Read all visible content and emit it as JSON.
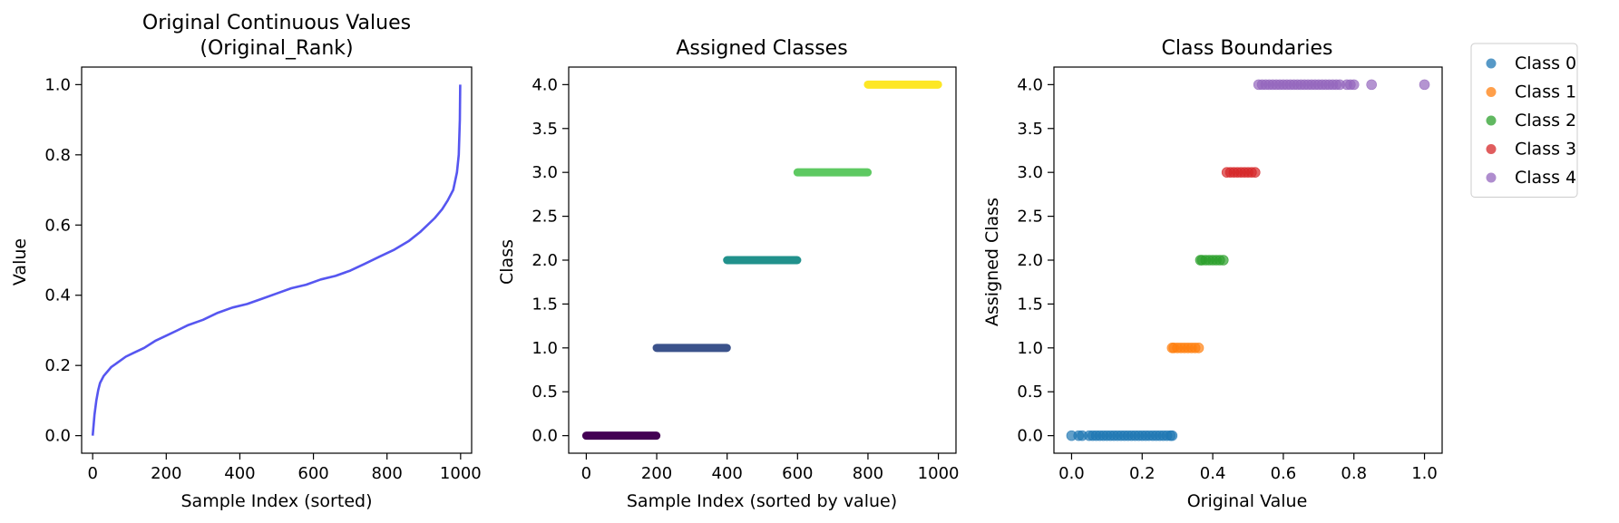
{
  "chart_data": [
    {
      "type": "line",
      "title_lines": [
        "Original Continuous Values",
        "(Original_Rank)"
      ],
      "xlabel": "Sample Index (sorted)",
      "ylabel": "Value",
      "xlim": [
        -30,
        1030
      ],
      "ylim": [
        -0.05,
        1.05
      ],
      "xticks": [
        0,
        200,
        400,
        600,
        800,
        1000
      ],
      "yticks": [
        0.0,
        0.2,
        0.4,
        0.6,
        0.8,
        1.0
      ],
      "xtick_labels": [
        "0",
        "200",
        "400",
        "600",
        "800",
        "1000"
      ],
      "ytick_labels": [
        "0.0",
        "0.2",
        "0.4",
        "0.6",
        "0.8",
        "1.0"
      ],
      "grid": false,
      "series": [
        {
          "color": "#4444ee",
          "x": [
            0,
            5,
            10,
            15,
            20,
            30,
            50,
            70,
            90,
            110,
            140,
            170,
            200,
            230,
            260,
            300,
            340,
            380,
            420,
            460,
            500,
            540,
            580,
            620,
            660,
            700,
            740,
            780,
            820,
            860,
            890,
            910,
            930,
            950,
            965,
            980,
            990,
            995,
            998,
            999
          ],
          "y": [
            0.0,
            0.06,
            0.1,
            0.13,
            0.15,
            0.17,
            0.195,
            0.21,
            0.225,
            0.235,
            0.25,
            0.27,
            0.285,
            0.3,
            0.315,
            0.33,
            0.35,
            0.365,
            0.375,
            0.39,
            0.405,
            0.42,
            0.43,
            0.445,
            0.455,
            0.47,
            0.49,
            0.51,
            0.53,
            0.555,
            0.58,
            0.6,
            0.62,
            0.645,
            0.67,
            0.7,
            0.75,
            0.8,
            0.9,
            1.0
          ]
        }
      ]
    },
    {
      "type": "scatter",
      "title_lines": [
        "Assigned Classes"
      ],
      "xlabel": "Sample Index (sorted by value)",
      "ylabel": "Class",
      "xlim": [
        -50,
        1050
      ],
      "ylim": [
        -0.2,
        4.2
      ],
      "xticks": [
        0,
        200,
        400,
        600,
        800,
        1000
      ],
      "yticks": [
        0.0,
        0.5,
        1.0,
        1.5,
        2.0,
        2.5,
        3.0,
        3.5,
        4.0
      ],
      "xtick_labels": [
        "0",
        "200",
        "400",
        "600",
        "800",
        "1000"
      ],
      "ytick_labels": [
        "0.0",
        "0.5",
        "1.0",
        "1.5",
        "2.0",
        "2.5",
        "3.0",
        "3.5",
        "4.0"
      ],
      "grid": false,
      "segments": [
        {
          "class": 0,
          "x_range": [
            0,
            199
          ],
          "color": "#440154"
        },
        {
          "class": 1,
          "x_range": [
            200,
            399
          ],
          "color": "#3b528b"
        },
        {
          "class": 2,
          "x_range": [
            400,
            599
          ],
          "color": "#21918c"
        },
        {
          "class": 3,
          "x_range": [
            600,
            799
          ],
          "color": "#5ec962"
        },
        {
          "class": 4,
          "x_range": [
            800,
            999
          ],
          "color": "#fde725"
        }
      ]
    },
    {
      "type": "scatter",
      "title_lines": [
        "Class Boundaries"
      ],
      "xlabel": "Original Value",
      "ylabel": "Assigned Class",
      "xlim": [
        -0.05,
        1.05
      ],
      "ylim": [
        -0.2,
        4.2
      ],
      "xticks": [
        0.0,
        0.2,
        0.4,
        0.6,
        0.8,
        1.0
      ],
      "yticks": [
        0.0,
        0.5,
        1.0,
        1.5,
        2.0,
        2.5,
        3.0,
        3.5,
        4.0
      ],
      "xtick_labels": [
        "0.0",
        "0.2",
        "0.4",
        "0.6",
        "0.8",
        "1.0"
      ],
      "ytick_labels": [
        "0.0",
        "0.5",
        "1.0",
        "1.5",
        "2.0",
        "2.5",
        "3.0",
        "3.5",
        "4.0"
      ],
      "grid": false,
      "legend": "outside-right-top",
      "series": [
        {
          "name": "Class 0",
          "y": 0,
          "color": "#1f77b4",
          "x": [
            0.0,
            0.02,
            0.03,
            0.05,
            0.06,
            0.07,
            0.08,
            0.09,
            0.1,
            0.11,
            0.12,
            0.13,
            0.14,
            0.15,
            0.16,
            0.17,
            0.18,
            0.19,
            0.2,
            0.21,
            0.22,
            0.23,
            0.24,
            0.25,
            0.26,
            0.27,
            0.28,
            0.285
          ]
        },
        {
          "name": "Class 1",
          "y": 1,
          "color": "#ff7f0e",
          "x": [
            0.285,
            0.29,
            0.3,
            0.31,
            0.32,
            0.33,
            0.34,
            0.35,
            0.36
          ]
        },
        {
          "name": "Class 2",
          "y": 2,
          "color": "#2ca02c",
          "x": [
            0.365,
            0.37,
            0.38,
            0.39,
            0.4,
            0.41,
            0.42,
            0.43
          ]
        },
        {
          "name": "Class 3",
          "y": 3,
          "color": "#d62728",
          "x": [
            0.44,
            0.45,
            0.46,
            0.47,
            0.48,
            0.49,
            0.5,
            0.51,
            0.52
          ]
        },
        {
          "name": "Class 4",
          "y": 4,
          "color": "#9467bd",
          "x": [
            0.53,
            0.54,
            0.55,
            0.56,
            0.57,
            0.58,
            0.59,
            0.6,
            0.61,
            0.62,
            0.63,
            0.64,
            0.65,
            0.66,
            0.67,
            0.68,
            0.69,
            0.7,
            0.71,
            0.72,
            0.73,
            0.74,
            0.75,
            0.76,
            0.78,
            0.79,
            0.8,
            0.85,
            1.0
          ]
        }
      ]
    }
  ]
}
